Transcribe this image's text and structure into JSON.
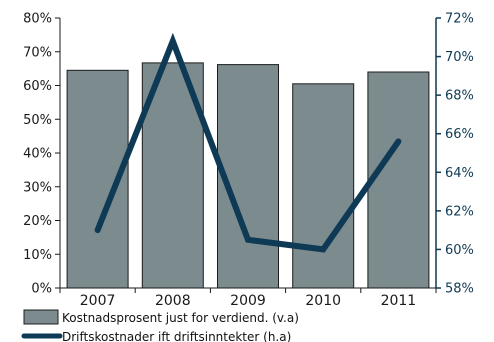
{
  "chart_data": {
    "type": "bar",
    "categories": [
      "2007",
      "2008",
      "2009",
      "2010",
      "2011"
    ],
    "series": [
      {
        "name": "Kostnadsprosent just for verdiend. (v.a)",
        "type": "bar",
        "axis": "left",
        "values": [
          64.5,
          66.7,
          66.2,
          60.5,
          64.0
        ]
      },
      {
        "name": "Driftskostnader ift driftsinntekter (h.a)",
        "type": "line",
        "axis": "right",
        "values": [
          61.0,
          70.8,
          60.5,
          60.0,
          65.6
        ]
      }
    ],
    "y_left": {
      "lim": [
        0,
        80
      ],
      "ticks": [
        "0%",
        "10%",
        "20%",
        "30%",
        "40%",
        "50%",
        "60%",
        "70%",
        "80%"
      ],
      "tick_values": [
        0,
        10,
        20,
        30,
        40,
        50,
        60,
        70,
        80
      ]
    },
    "y_right": {
      "lim": [
        58,
        72
      ],
      "ticks": [
        "58%",
        "60%",
        "62%",
        "64%",
        "66%",
        "68%",
        "70%",
        "72%"
      ],
      "tick_values": [
        58,
        60,
        62,
        64,
        66,
        68,
        70,
        72
      ]
    },
    "legend_position": "bottom-left",
    "colors": {
      "bar_fill": "#7b8b8e",
      "bar_stroke": "#1c1c1c",
      "line": "#0f3a55",
      "left_axis": "#1a1a1a",
      "right_axis": "#0f3a55"
    }
  }
}
